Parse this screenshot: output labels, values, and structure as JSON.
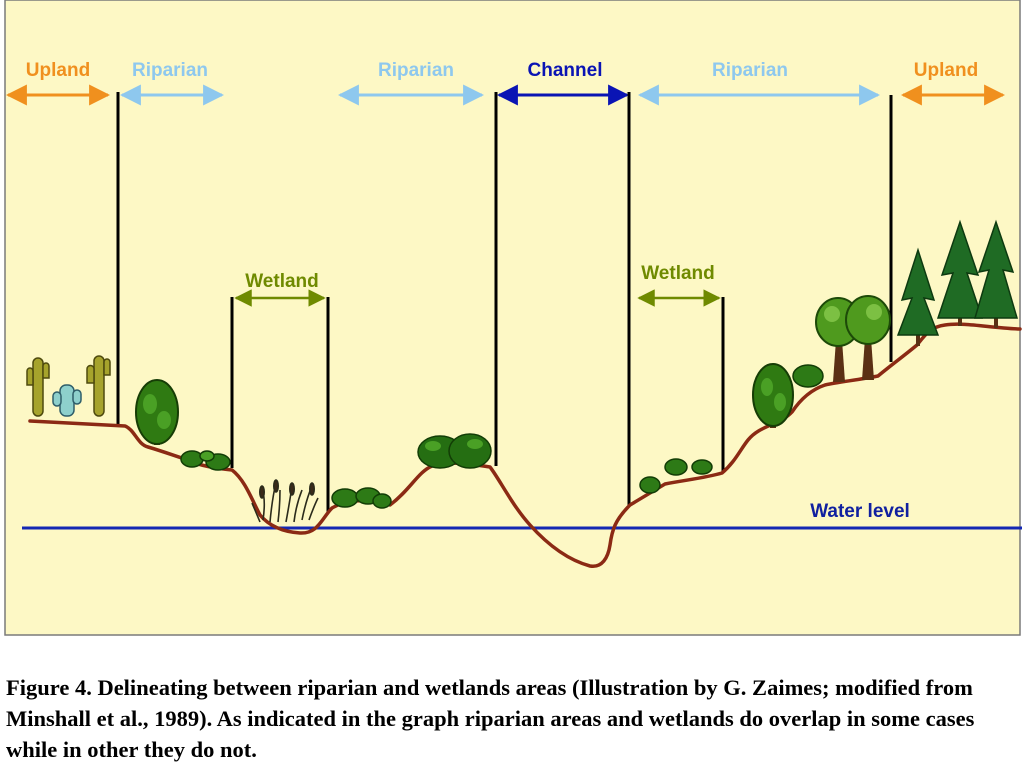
{
  "diagram": {
    "labels": {
      "upland_left": "Upland",
      "riparian_left": "Riparian",
      "riparian_center": "Riparian",
      "channel": "Channel",
      "riparian_right": "Riparian",
      "upland_right": "Upland",
      "wetland_left": "Wetland",
      "wetland_right": "Wetland",
      "water_level": "Water level"
    },
    "colors": {
      "background": "#fdf8c5",
      "upland": "#f0901e",
      "riparian": "#8ec8ee",
      "channel": "#0a14b4",
      "wetland": "#6f8a00",
      "water_level": "#1428b4",
      "water_level_text": "#1020a0",
      "ground": "#8b2a14",
      "boundary": "#000000"
    },
    "icons": [
      "cactus-icon",
      "shrub-icon",
      "tree-icon",
      "reed-icon",
      "conifer-icon",
      "deciduous-tree-icon"
    ]
  },
  "caption": "Figure 4. Delineating between riparian and wetlands areas (Illustration by G. Zaimes; modified from Minshall et al., 1989).  As indicated in the graph riparian areas and wetlands do overlap in some cases while in other they do not."
}
